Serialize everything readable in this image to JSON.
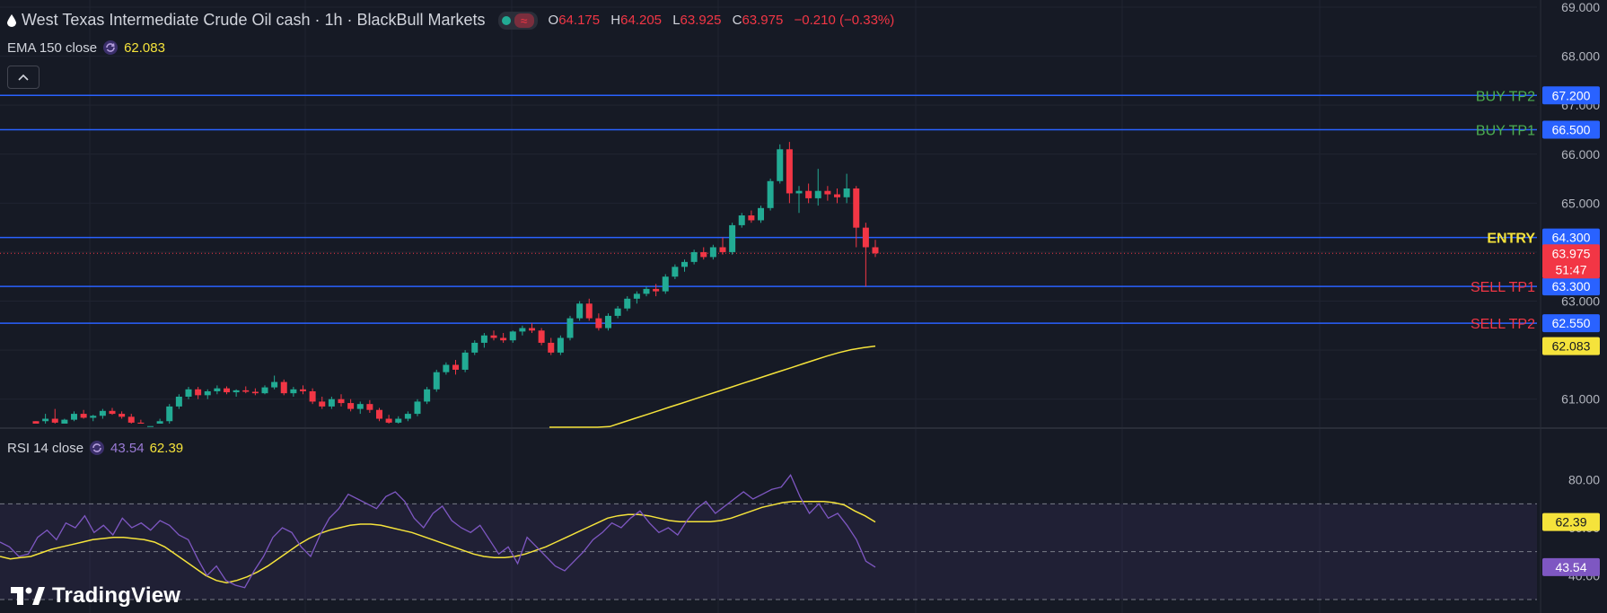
{
  "header": {
    "symbol_title": "West Texas Intermediate Crude Oil cash · 1h · BlackBull Markets",
    "wave_glyph": "≈",
    "ohlc": [
      {
        "key": "O",
        "value": "64.175"
      },
      {
        "key": "H",
        "value": "64.205"
      },
      {
        "key": "L",
        "value": "63.925"
      },
      {
        "key": "C",
        "value": "63.975"
      }
    ],
    "change": "−0.210 (−0.33%)",
    "ema_label": "EMA 150 close",
    "ema_value": "62.083",
    "collapse_icon": "chevron-up-icon"
  },
  "rsi_legend": {
    "label": "RSI 14 close",
    "value_rsi": "43.54",
    "value_ma": "62.39"
  },
  "logo": {
    "text": "TradingView"
  },
  "colors": {
    "background": "#161a25",
    "up": "#22ab94",
    "down": "#f23645",
    "level_line": "#2962ff",
    "level_tag": "#2962ff",
    "ema": "#f5e33b",
    "rsi": "#7e57c2",
    "rsi_ma": "#f5e33b",
    "buy_text": "#4caf50",
    "sell_text": "#f23645",
    "entry_text": "#f5e33b"
  },
  "chart_data": {
    "type": "candlestick",
    "timeframe": "1h",
    "price_axis": {
      "ticks": [
        "61.000",
        "62.000",
        "63.000",
        "64.000",
        "65.000",
        "66.000",
        "67.000",
        "68.000",
        "69.000"
      ],
      "range": [
        60.5,
        69.0
      ]
    },
    "levels": [
      {
        "label": "BUY TP2",
        "price": "67.200",
        "kind": "buy"
      },
      {
        "label": "BUY TP1",
        "price": "66.500",
        "kind": "buy"
      },
      {
        "label": "ENTRY",
        "price": "64.300",
        "kind": "entry"
      },
      {
        "label": "SELL TP1",
        "price": "63.300",
        "kind": "sell"
      },
      {
        "label": "SELL TP2",
        "price": "62.550",
        "kind": "sell"
      }
    ],
    "last_price": {
      "value": "63.975",
      "countdown": "51:47"
    },
    "ema_tag": "62.083",
    "candles": [
      [
        60.55,
        60.55,
        60.4,
        60.45
      ],
      [
        60.55,
        60.7,
        60.45,
        60.6
      ],
      [
        60.6,
        60.8,
        60.5,
        60.52
      ],
      [
        60.5,
        60.6,
        60.4,
        60.58
      ],
      [
        60.58,
        60.75,
        60.55,
        60.7
      ],
      [
        60.7,
        60.78,
        60.6,
        60.62
      ],
      [
        60.62,
        60.68,
        60.55,
        60.66
      ],
      [
        60.66,
        60.8,
        60.6,
        60.76
      ],
      [
        60.76,
        60.82,
        60.68,
        60.7
      ],
      [
        60.7,
        60.75,
        60.6,
        60.64
      ],
      [
        60.64,
        60.7,
        60.5,
        60.52
      ],
      [
        60.52,
        60.58,
        60.4,
        60.45
      ],
      [
        60.4,
        60.5,
        60.3,
        60.45
      ],
      [
        60.45,
        60.6,
        60.4,
        60.55
      ],
      [
        60.55,
        60.9,
        60.5,
        60.85
      ],
      [
        60.85,
        61.1,
        60.8,
        61.05
      ],
      [
        61.05,
        61.25,
        61.0,
        61.2
      ],
      [
        61.2,
        61.25,
        61.0,
        61.08
      ],
      [
        61.08,
        61.2,
        61.0,
        61.16
      ],
      [
        61.16,
        61.28,
        61.1,
        61.22
      ],
      [
        61.22,
        61.26,
        61.1,
        61.14
      ],
      [
        61.14,
        61.2,
        61.05,
        61.18
      ],
      [
        61.18,
        61.26,
        61.12,
        61.15
      ],
      [
        61.15,
        61.22,
        61.08,
        61.12
      ],
      [
        61.12,
        61.28,
        61.1,
        61.24
      ],
      [
        61.24,
        61.48,
        61.2,
        61.35
      ],
      [
        61.35,
        61.4,
        61.08,
        61.12
      ],
      [
        61.12,
        61.25,
        61.05,
        61.2
      ],
      [
        61.2,
        61.28,
        61.1,
        61.16
      ],
      [
        61.16,
        61.22,
        60.9,
        60.95
      ],
      [
        60.95,
        61.05,
        60.8,
        60.85
      ],
      [
        60.85,
        61.05,
        60.8,
        61.0
      ],
      [
        61.0,
        61.1,
        60.85,
        60.92
      ],
      [
        60.92,
        61.0,
        60.75,
        60.8
      ],
      [
        60.8,
        60.95,
        60.7,
        60.9
      ],
      [
        60.9,
        60.98,
        60.72,
        60.78
      ],
      [
        60.78,
        60.82,
        60.55,
        60.6
      ],
      [
        60.6,
        60.68,
        60.45,
        60.52
      ],
      [
        60.52,
        60.65,
        60.48,
        60.6
      ],
      [
        60.6,
        60.75,
        60.55,
        60.7
      ],
      [
        60.7,
        61.0,
        60.65,
        60.95
      ],
      [
        60.95,
        61.25,
        60.9,
        61.2
      ],
      [
        61.2,
        61.6,
        61.15,
        61.55
      ],
      [
        61.55,
        61.75,
        61.5,
        61.7
      ],
      [
        61.7,
        61.8,
        61.5,
        61.6
      ],
      [
        61.6,
        62.0,
        61.55,
        61.95
      ],
      [
        61.95,
        62.2,
        61.9,
        62.15
      ],
      [
        62.15,
        62.35,
        62.05,
        62.3
      ],
      [
        62.3,
        62.4,
        62.2,
        62.25
      ],
      [
        62.25,
        62.35,
        62.15,
        62.2
      ],
      [
        62.2,
        62.4,
        62.15,
        62.38
      ],
      [
        62.38,
        62.5,
        62.3,
        62.45
      ],
      [
        62.45,
        62.55,
        62.35,
        62.4
      ],
      [
        62.4,
        62.45,
        62.1,
        62.15
      ],
      [
        62.15,
        62.25,
        61.9,
        61.95
      ],
      [
        61.95,
        62.3,
        61.9,
        62.25
      ],
      [
        62.25,
        62.7,
        62.2,
        62.65
      ],
      [
        62.65,
        63.0,
        62.6,
        62.95
      ],
      [
        62.95,
        63.05,
        62.6,
        62.65
      ],
      [
        62.65,
        62.75,
        62.4,
        62.45
      ],
      [
        62.45,
        62.75,
        62.4,
        62.7
      ],
      [
        62.7,
        62.9,
        62.65,
        62.85
      ],
      [
        62.85,
        63.1,
        62.8,
        63.05
      ],
      [
        63.05,
        63.2,
        62.95,
        63.15
      ],
      [
        63.15,
        63.3,
        63.1,
        63.25
      ],
      [
        63.25,
        63.35,
        63.1,
        63.2
      ],
      [
        63.2,
        63.55,
        63.15,
        63.5
      ],
      [
        63.5,
        63.75,
        63.45,
        63.7
      ],
      [
        63.7,
        63.85,
        63.6,
        63.8
      ],
      [
        63.8,
        64.05,
        63.75,
        64.0
      ],
      [
        64.0,
        64.1,
        63.85,
        63.9
      ],
      [
        63.9,
        64.15,
        63.85,
        64.1
      ],
      [
        64.1,
        64.3,
        63.95,
        64.0
      ],
      [
        64.0,
        64.6,
        63.95,
        64.55
      ],
      [
        64.55,
        64.8,
        64.5,
        64.75
      ],
      [
        64.75,
        64.85,
        64.6,
        64.65
      ],
      [
        64.65,
        64.95,
        64.6,
        64.9
      ],
      [
        64.9,
        65.5,
        64.85,
        65.45
      ],
      [
        65.45,
        66.2,
        65.4,
        66.1
      ],
      [
        66.1,
        66.25,
        65.0,
        65.2
      ],
      [
        65.2,
        65.35,
        64.8,
        65.25
      ],
      [
        65.25,
        65.4,
        65.0,
        65.1
      ],
      [
        65.1,
        65.7,
        64.95,
        65.25
      ],
      [
        65.25,
        65.35,
        65.05,
        65.18
      ],
      [
        65.18,
        65.3,
        65.0,
        65.12
      ],
      [
        65.12,
        65.6,
        65.0,
        65.3
      ],
      [
        65.3,
        65.35,
        64.1,
        64.5
      ],
      [
        64.5,
        64.6,
        63.3,
        64.1
      ],
      [
        64.1,
        64.25,
        63.9,
        63.975
      ]
    ],
    "ema150": [
      60.05,
      60.12,
      60.2,
      60.28,
      60.36,
      60.44,
      60.52,
      60.6,
      60.68,
      60.76,
      60.84,
      60.92,
      61.0,
      61.08,
      61.16,
      61.24,
      61.32,
      61.4,
      61.48,
      61.56,
      61.64,
      61.72,
      61.8,
      61.88,
      61.95,
      62.01,
      62.05,
      62.083
    ],
    "rsi": {
      "label": "RSI 14 close",
      "axis_ticks": [
        "40.00",
        "60.00",
        "80.00"
      ],
      "range": [
        30,
        90
      ],
      "overbought": 70,
      "oversold": 30,
      "middle": 50,
      "values": [
        54,
        52,
        48,
        49,
        56,
        59,
        55,
        62,
        60,
        65,
        58,
        61,
        57,
        64,
        60,
        62,
        59,
        63,
        61,
        57,
        55,
        47,
        40,
        44,
        38,
        36,
        35,
        42,
        48,
        56,
        60,
        58,
        52,
        48,
        57,
        64,
        68,
        74,
        72,
        70,
        68,
        73,
        75,
        71,
        64,
        60,
        66,
        69,
        63,
        60,
        58,
        61,
        55,
        49,
        52,
        45,
        56,
        52,
        48,
        44,
        42,
        46,
        50,
        55,
        58,
        62,
        60,
        64,
        67,
        62,
        58,
        60,
        57,
        63,
        68,
        71,
        66,
        69,
        72,
        75,
        72,
        74,
        76,
        77,
        82,
        73,
        66,
        70,
        64,
        66,
        61,
        55,
        46,
        43.54
      ],
      "ma_values": [
        48,
        47,
        47.5,
        48,
        49.5,
        51,
        52,
        53,
        54,
        55,
        55.5,
        56,
        56,
        55.5,
        55,
        54,
        52,
        49,
        46,
        43,
        40,
        38,
        37,
        38,
        39.5,
        41.5,
        44,
        47,
        50,
        53,
        55.5,
        57.5,
        59,
        60,
        61,
        61.5,
        61.5,
        61,
        60,
        59,
        58,
        56.5,
        55,
        53.5,
        52,
        50.5,
        49,
        48,
        47.5,
        47.5,
        48,
        49,
        50.5,
        52,
        54,
        56,
        58,
        60,
        62,
        64,
        65,
        65.5,
        65.5,
        65,
        64,
        63,
        62.5,
        62.5,
        62.5,
        62.5,
        63,
        64,
        65.5,
        67,
        68.5,
        69.5,
        70.5,
        71,
        71,
        71,
        71,
        70.5,
        69.5,
        67,
        65,
        62.39
      ]
    }
  }
}
